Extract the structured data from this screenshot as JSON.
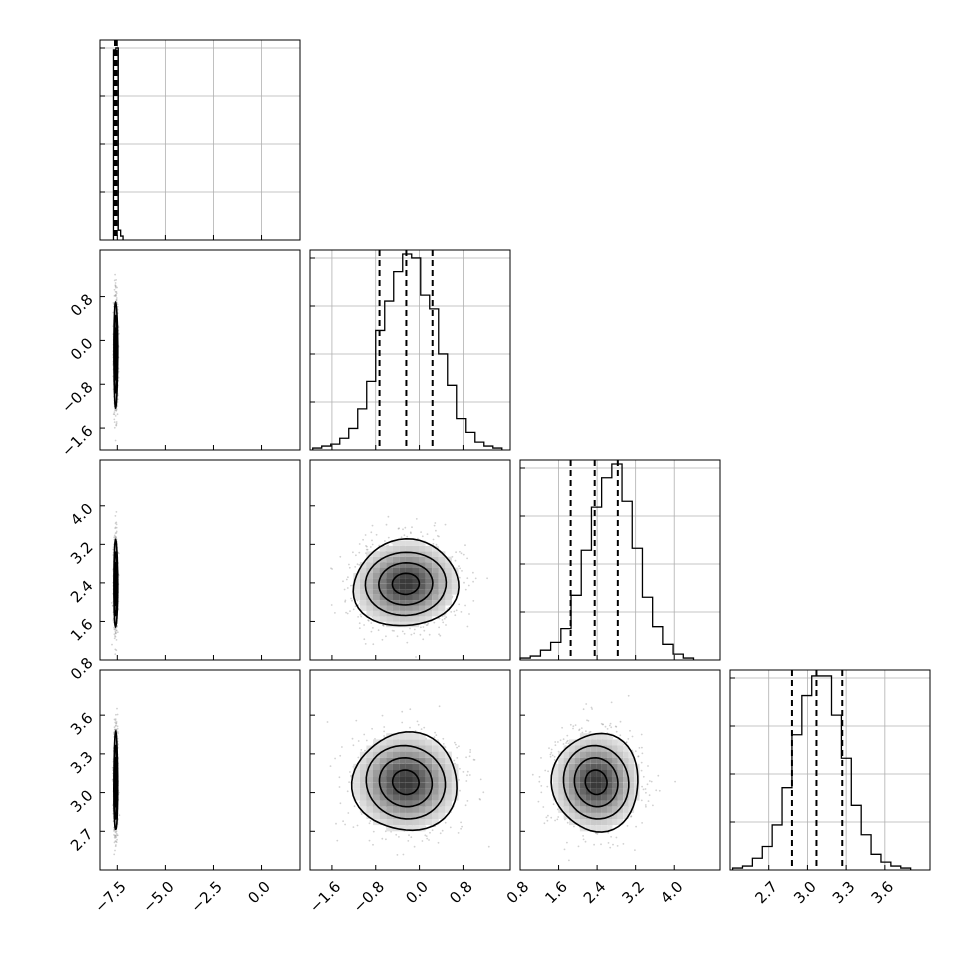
{
  "chart_data": {
    "type": "corner",
    "grid": true,
    "colors": {
      "ink": "#000000",
      "grid": "#b0b0b0",
      "points": "#9a9a9a"
    },
    "params": [
      {
        "range": [
          -8.4,
          2.0
        ],
        "ticks": [
          -7.5,
          -5.0,
          -2.5,
          0.0
        ],
        "tick_labels": [
          "−7.5",
          "−5.0",
          "−2.5",
          "0.0"
        ],
        "quantiles": [
          -7.62,
          -7.58,
          -7.53
        ],
        "hist_range": [
          -7.7,
          -7.2
        ],
        "hist_counts": [
          0.97,
          0.98,
          0.05,
          0.02
        ],
        "mean": -7.58,
        "sd": 0.05
      },
      {
        "range": [
          -2.0,
          1.65
        ],
        "ticks": [
          -1.6,
          -0.8,
          0.0,
          0.8
        ],
        "tick_labels": [
          "−1.6",
          "−0.8",
          "0.0",
          "0.8"
        ],
        "quantiles": [
          -0.73,
          -0.24,
          0.24
        ],
        "hist_range": [
          -1.95,
          1.5
        ],
        "hist_counts": [
          0.01,
          0.02,
          0.03,
          0.06,
          0.11,
          0.21,
          0.35,
          0.61,
          0.76,
          0.91,
          1.0,
          0.98,
          0.79,
          0.72,
          0.49,
          0.33,
          0.16,
          0.09,
          0.04,
          0.02,
          0.01
        ],
        "mean": -0.25,
        "sd": 0.48
      },
      {
        "range": [
          0.8,
          4.95
        ],
        "ticks": [
          0.8,
          1.6,
          2.4,
          3.2,
          4.0
        ],
        "tick_labels": [
          "0.8",
          "1.6",
          "2.4",
          "3.2",
          "4.0"
        ],
        "quantiles": [
          1.85,
          2.35,
          2.83
        ],
        "hist_range": [
          0.8,
          4.4
        ],
        "hist_counts": [
          0.01,
          0.02,
          0.05,
          0.09,
          0.16,
          0.33,
          0.56,
          0.78,
          0.93,
          1.0,
          0.81,
          0.57,
          0.32,
          0.17,
          0.08,
          0.03,
          0.01
        ],
        "mean": 2.38,
        "sd": 0.45
      },
      {
        "range": [
          2.4,
          3.95
        ],
        "ticks": [
          2.7,
          3.0,
          3.3,
          3.6
        ],
        "tick_labels": [
          "2.7",
          "3.0",
          "3.3",
          "3.6"
        ],
        "quantiles": [
          2.88,
          3.07,
          3.27
        ],
        "hist_range": [
          2.42,
          3.8
        ],
        "hist_counts": [
          0.01,
          0.02,
          0.06,
          0.12,
          0.23,
          0.42,
          0.69,
          0.89,
          0.99,
          0.99,
          0.79,
          0.57,
          0.33,
          0.18,
          0.08,
          0.04,
          0.02,
          0.01
        ],
        "mean": 3.08,
        "sd": 0.19
      }
    ],
    "pairs": [
      {
        "x": 0,
        "y": 1,
        "corr": 0.0
      },
      {
        "x": 0,
        "y": 2,
        "corr": 0.0
      },
      {
        "x": 0,
        "y": 3,
        "corr": 0.0
      },
      {
        "x": 1,
        "y": 2,
        "corr": 0.05
      },
      {
        "x": 1,
        "y": 3,
        "corr": 0.0
      },
      {
        "x": 2,
        "y": 3,
        "corr": 0.0
      }
    ],
    "contour_levels_sigma": [
      0.5,
      1.0,
      1.5,
      2.0
    ]
  }
}
